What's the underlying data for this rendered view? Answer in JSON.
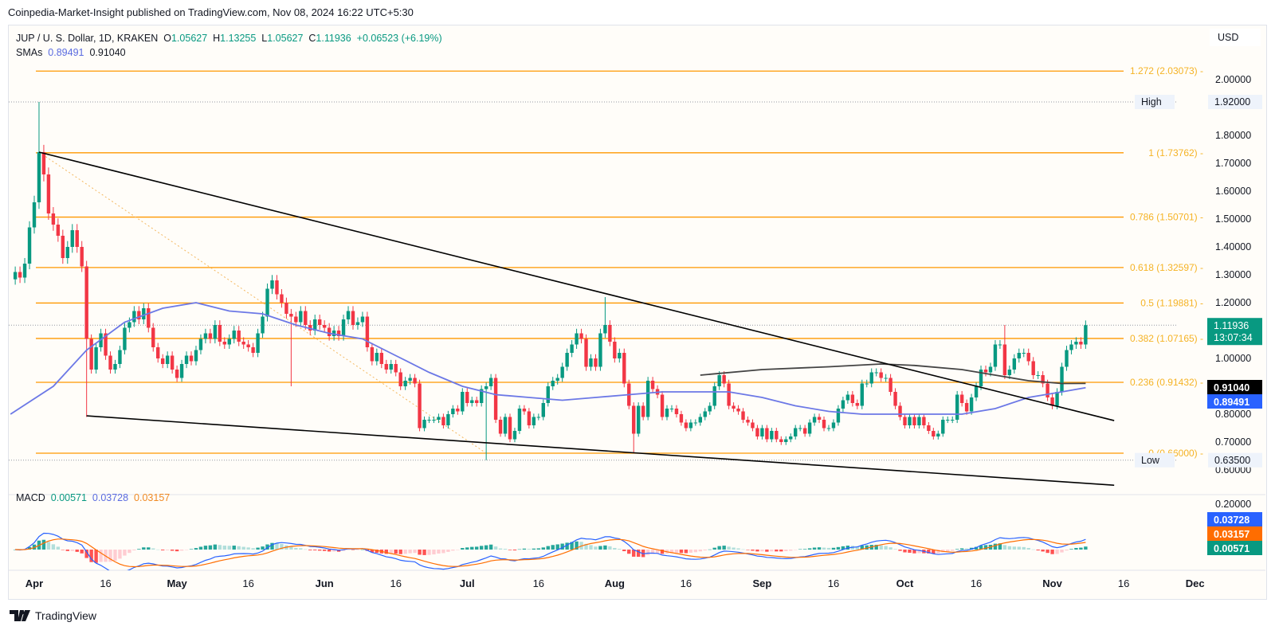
{
  "publisher_line": "Coinpedia-Market-Insight published on TradingView.com, Nov 08, 2024 16:22 UTC+5:30",
  "legend": {
    "symbol": "JUP / U. S. Dollar, 1D, KRAKEN",
    "open_label": "O",
    "open": "1.05627",
    "high_label": "H",
    "high": "1.13255",
    "low_label": "L",
    "low": "1.05627",
    "close_label": "C",
    "close": "1.11936",
    "change": "+0.06523 (+6.19%)",
    "sma_label": "SMAs",
    "sma1": "0.89491",
    "sma2": "0.91040"
  },
  "currency": "USD",
  "colors": {
    "up": "#089981",
    "down": "#F23645",
    "fib": "#FF9800",
    "fib_text": "#F5B325",
    "sma_fast": "#6C78E6",
    "sma_slow": "#444444",
    "macd": "#2962FF",
    "signal": "#FF6D00",
    "trendline": "#000000"
  },
  "chart_data": {
    "type": "candlestick",
    "start_date": "2024-03-28",
    "close": [
      1.31,
      1.29,
      1.34,
      1.47,
      1.56,
      1.74,
      1.66,
      1.52,
      1.48,
      1.44,
      1.36,
      1.4,
      1.46,
      1.4,
      1.33,
      1.07,
      0.96,
      1.04,
      1.09,
      1.01,
      0.96,
      0.98,
      1.03,
      1.11,
      1.13,
      1.17,
      1.14,
      1.18,
      1.11,
      1.04,
      1.0,
      0.98,
      1.01,
      0.96,
      0.93,
      0.98,
      1.01,
      0.99,
      1.03,
      1.07,
      1.09,
      1.07,
      1.12,
      1.06,
      1.05,
      1.07,
      1.1,
      1.06,
      1.05,
      1.04,
      1.02,
      1.09,
      1.15,
      1.25,
      1.28,
      1.23,
      1.2,
      1.16,
      1.15,
      1.13,
      1.17,
      1.12,
      1.1,
      1.14,
      1.12,
      1.11,
      1.08,
      1.1,
      1.08,
      1.14,
      1.17,
      1.12,
      1.13,
      1.15,
      1.04,
      0.99,
      1.02,
      0.98,
      0.96,
      0.98,
      0.95,
      0.9,
      0.92,
      0.93,
      0.91,
      0.75,
      0.78,
      0.78,
      0.78,
      0.79,
      0.76,
      0.8,
      0.82,
      0.81,
      0.88,
      0.84,
      0.85,
      0.84,
      0.89,
      0.9,
      0.93,
      0.78,
      0.73,
      0.79,
      0.71,
      0.74,
      0.82,
      0.81,
      0.76,
      0.79,
      0.79,
      0.84,
      0.9,
      0.92,
      0.93,
      0.97,
      1.02,
      1.05,
      1.09,
      1.07,
      0.97,
      1.0,
      0.97,
      1.09,
      1.12,
      1.06,
      1.0,
      1.02,
      0.91,
      0.83,
      0.73,
      0.83,
      0.79,
      0.92,
      0.89,
      0.87,
      0.79,
      0.82,
      0.82,
      0.8,
      0.77,
      0.75,
      0.77,
      0.77,
      0.79,
      0.81,
      0.83,
      0.9,
      0.94,
      0.91,
      0.83,
      0.82,
      0.81,
      0.78,
      0.77,
      0.75,
      0.72,
      0.75,
      0.71,
      0.74,
      0.71,
      0.7,
      0.71,
      0.72,
      0.75,
      0.75,
      0.73,
      0.77,
      0.79,
      0.78,
      0.75,
      0.75,
      0.77,
      0.82,
      0.85,
      0.87,
      0.84,
      0.83,
      0.91,
      0.91,
      0.95,
      0.95,
      0.93,
      0.93,
      0.88,
      0.83,
      0.79,
      0.76,
      0.79,
      0.76,
      0.79,
      0.76,
      0.74,
      0.72,
      0.73,
      0.78,
      0.78,
      0.78,
      0.87,
      0.84,
      0.81,
      0.86,
      0.9,
      0.96,
      0.95,
      0.97,
      1.05,
      1.05,
      0.94,
      0.96,
      1.0,
      1.02,
      1.02,
      0.99,
      0.94,
      0.94,
      0.91,
      0.86,
      0.83,
      0.88,
      0.97,
      1.03,
      1.05,
      1.06,
      1.05,
      1.11936
    ],
    "notable_wicks": [
      {
        "date": "2024-04-02",
        "high": 1.92
      },
      {
        "date": "2024-07-05",
        "low": 0.635
      },
      {
        "date": "2024-07-30",
        "high": 1.22
      },
      {
        "date": "2024-05-25",
        "low": 0.9
      },
      {
        "date": "2024-04-12",
        "low": 0.79
      },
      {
        "date": "2024-08-05",
        "low": 0.66
      },
      {
        "date": "2024-10-22",
        "high": 1.12
      }
    ],
    "sma_fast": [
      [
        "2024-03-27",
        0.8
      ],
      [
        "2024-04-05",
        0.9
      ],
      [
        "2024-04-12",
        1.03
      ],
      [
        "2024-04-20",
        1.13
      ],
      [
        "2024-04-28",
        1.18
      ],
      [
        "2024-05-05",
        1.2
      ],
      [
        "2024-05-12",
        1.17
      ],
      [
        "2024-05-19",
        1.16
      ],
      [
        "2024-05-26",
        1.12
      ],
      [
        "2024-06-02",
        1.09
      ],
      [
        "2024-06-09",
        1.07
      ],
      [
        "2024-06-16",
        1.01
      ],
      [
        "2024-06-23",
        0.95
      ],
      [
        "2024-06-30",
        0.9
      ],
      [
        "2024-07-07",
        0.87
      ],
      [
        "2024-07-14",
        0.86
      ],
      [
        "2024-07-21",
        0.85
      ],
      [
        "2024-07-28",
        0.86
      ],
      [
        "2024-08-04",
        0.87
      ],
      [
        "2024-08-11",
        0.88
      ],
      [
        "2024-08-18",
        0.88
      ],
      [
        "2024-08-25",
        0.88
      ],
      [
        "2024-09-01",
        0.86
      ],
      [
        "2024-09-08",
        0.83
      ],
      [
        "2024-09-15",
        0.81
      ],
      [
        "2024-09-22",
        0.8
      ],
      [
        "2024-09-29",
        0.8
      ],
      [
        "2024-10-06",
        0.8
      ],
      [
        "2024-10-13",
        0.8
      ],
      [
        "2024-10-20",
        0.82
      ],
      [
        "2024-10-27",
        0.86
      ],
      [
        "2024-11-03",
        0.88
      ],
      [
        "2024-11-08",
        0.89491
      ]
    ],
    "sma_slow": [
      [
        "2024-08-19",
        0.94
      ],
      [
        "2024-09-01",
        0.96
      ],
      [
        "2024-09-15",
        0.97
      ],
      [
        "2024-09-26",
        0.98
      ],
      [
        "2024-10-03",
        0.975
      ],
      [
        "2024-10-13",
        0.96
      ],
      [
        "2024-10-20",
        0.94
      ],
      [
        "2024-10-27",
        0.92
      ],
      [
        "2024-11-03",
        0.91
      ],
      [
        "2024-11-08",
        0.9104
      ]
    ],
    "trendlines": [
      {
        "name": "upper",
        "from": [
          "2024-04-02",
          1.74
        ],
        "to": [
          "2024-11-14",
          0.777
        ]
      },
      {
        "name": "lower",
        "from": [
          "2024-04-12",
          0.794
        ],
        "to": [
          "2024-11-14",
          0.545
        ]
      }
    ],
    "fib_trend": {
      "from": [
        "2024-04-02",
        1.74
      ],
      "to": [
        "2024-07-05",
        0.66
      ]
    },
    "fib_levels": [
      {
        "label": "1.272 (2.03073)",
        "price": 2.03073
      },
      {
        "label": "1 (1.73762)",
        "price": 1.73762
      },
      {
        "label": "0.786 (1.50701)",
        "price": 1.50701
      },
      {
        "label": "0.618 (1.32597)",
        "price": 1.32597
      },
      {
        "label": "0.5 (1.19881)",
        "price": 1.19881
      },
      {
        "label": "0.382 (1.07165)",
        "price": 1.07165
      },
      {
        "label": "0.236 (0.91432)",
        "price": 0.91432
      },
      {
        "label": "0 (0.66000)",
        "price": 0.66
      }
    ],
    "high_marker": {
      "label": "High",
      "value": "1.92000",
      "price": 1.92
    },
    "low_marker": {
      "label": "Low",
      "value": "0.63500",
      "price": 0.635
    },
    "last_price": {
      "value": "1.11936",
      "countdown": "13:07:34",
      "price": 1.11936
    },
    "sma_badges": [
      {
        "value": "0.91040",
        "price": 0.9104,
        "color": "#000000"
      },
      {
        "value": "0.89491",
        "price": 0.89491,
        "color": "#2962FF"
      }
    ],
    "price_ticks": [
      "2.00000",
      "1.80000",
      "1.70000",
      "1.60000",
      "1.50000",
      "1.40000",
      "1.30000",
      "1.20000",
      "1.00000",
      "0.80000",
      "0.70000",
      "0.60000"
    ],
    "ylim": [
      0.55,
      2.1
    ],
    "time_ticks": [
      {
        "label": "Apr",
        "date": "2024-04-01",
        "major": true
      },
      {
        "label": "16",
        "date": "2024-04-16"
      },
      {
        "label": "May",
        "date": "2024-05-01",
        "major": true
      },
      {
        "label": "16",
        "date": "2024-05-16"
      },
      {
        "label": "Jun",
        "date": "2024-06-01",
        "major": true
      },
      {
        "label": "16",
        "date": "2024-06-16"
      },
      {
        "label": "Jul",
        "date": "2024-07-01",
        "major": true
      },
      {
        "label": "16",
        "date": "2024-07-16"
      },
      {
        "label": "Aug",
        "date": "2024-08-01",
        "major": true
      },
      {
        "label": "16",
        "date": "2024-08-16"
      },
      {
        "label": "Sep",
        "date": "2024-09-01",
        "major": true
      },
      {
        "label": "16",
        "date": "2024-09-16"
      },
      {
        "label": "Oct",
        "date": "2024-10-01",
        "major": true
      },
      {
        "label": "16",
        "date": "2024-10-16"
      },
      {
        "label": "Nov",
        "date": "2024-11-01",
        "major": true
      },
      {
        "label": "16",
        "date": "2024-11-16"
      },
      {
        "label": "Dec",
        "date": "2024-12-01",
        "major": true
      }
    ],
    "macd": {
      "label": "MACD",
      "histogram": "0.00571",
      "macd": "0.03728",
      "signal": "0.03157",
      "axis_tick": "0.20000",
      "badges": [
        {
          "value": "0.03728",
          "color": "#2962FF"
        },
        {
          "value": "0.03157",
          "color": "#FF6D00"
        },
        {
          "value": "0.00571",
          "color": "#089981"
        }
      ]
    }
  },
  "footer": {
    "brand": "TradingView"
  }
}
